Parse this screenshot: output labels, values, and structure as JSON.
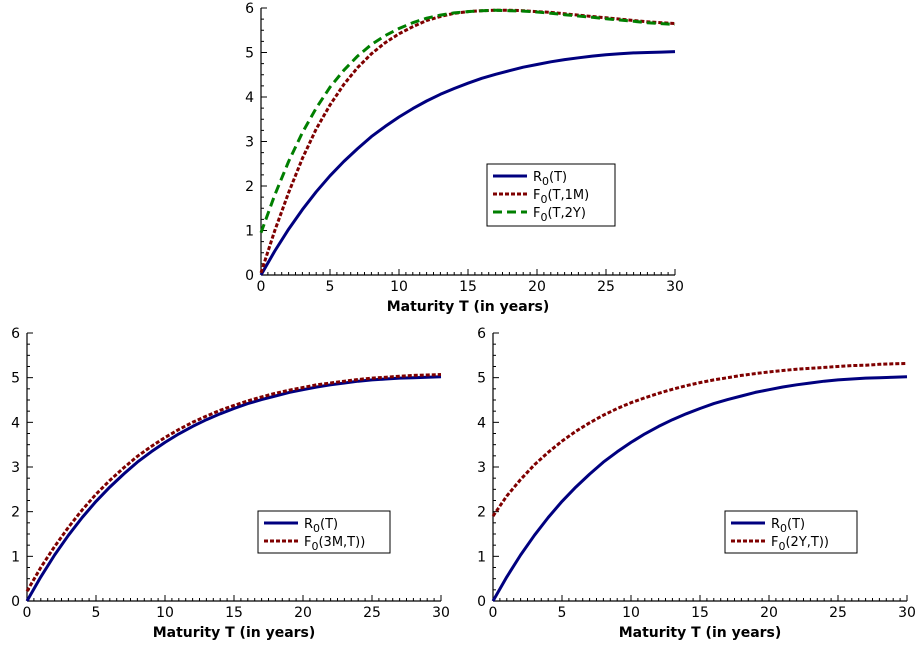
{
  "chart_data": [
    {
      "type": "line",
      "xlabel": "Maturity T (in years)",
      "ylabel": "",
      "xlim": [
        0,
        30
      ],
      "ylim": [
        0,
        6
      ],
      "xticks": [
        0,
        5,
        10,
        15,
        20,
        25,
        30
      ],
      "yticks": [
        0,
        1,
        2,
        3,
        4,
        5,
        6
      ],
      "grid": false,
      "legend_position": "center-right",
      "x": [
        0,
        1,
        2,
        3,
        4,
        5,
        6,
        7,
        8,
        9,
        10,
        11,
        12,
        13,
        14,
        15,
        16,
        17,
        18,
        19,
        20,
        21,
        22,
        23,
        24,
        25,
        26,
        27,
        28,
        29,
        30
      ],
      "series": [
        {
          "name": "R0(T)",
          "sub": "0",
          "prefix": "R",
          "suffix": "(T)",
          "color": "#00007f",
          "dash": "solid",
          "values": [
            0.0,
            0.54,
            1.03,
            1.47,
            1.87,
            2.23,
            2.55,
            2.84,
            3.11,
            3.34,
            3.55,
            3.74,
            3.91,
            4.06,
            4.19,
            4.31,
            4.42,
            4.51,
            4.59,
            4.67,
            4.73,
            4.79,
            4.84,
            4.88,
            4.92,
            4.95,
            4.97,
            4.99,
            5.0,
            5.01,
            5.02
          ]
        },
        {
          "name": "F0(T,1M)",
          "sub": "0",
          "prefix": "F",
          "suffix": "(T,1M)",
          "color": "#7f0000",
          "dash": "dotted",
          "values": [
            0.05,
            1.0,
            1.85,
            2.62,
            3.28,
            3.82,
            4.28,
            4.66,
            4.97,
            5.22,
            5.42,
            5.58,
            5.72,
            5.81,
            5.88,
            5.92,
            5.94,
            5.95,
            5.95,
            5.94,
            5.92,
            5.9,
            5.87,
            5.84,
            5.81,
            5.78,
            5.75,
            5.72,
            5.69,
            5.67,
            5.65
          ]
        },
        {
          "name": "F0(T,2Y)",
          "sub": "0",
          "prefix": "F",
          "suffix": "(T,2Y)",
          "color": "#007f00",
          "dash": "dashed",
          "values": [
            0.95,
            1.8,
            2.55,
            3.2,
            3.75,
            4.22,
            4.6,
            4.92,
            5.18,
            5.38,
            5.54,
            5.67,
            5.77,
            5.84,
            5.89,
            5.92,
            5.94,
            5.95,
            5.94,
            5.93,
            5.91,
            5.88,
            5.85,
            5.82,
            5.79,
            5.76,
            5.73,
            5.7,
            5.67,
            5.65,
            5.63
          ]
        }
      ]
    },
    {
      "type": "line",
      "xlabel": "Maturity T (in years)",
      "ylabel": "",
      "xlim": [
        0,
        30
      ],
      "ylim": [
        0,
        6
      ],
      "xticks": [
        0,
        5,
        10,
        15,
        20,
        25,
        30
      ],
      "yticks": [
        0,
        1,
        2,
        3,
        4,
        5,
        6
      ],
      "grid": false,
      "legend_position": "center-right",
      "x": [
        0,
        1,
        2,
        3,
        4,
        5,
        6,
        7,
        8,
        9,
        10,
        11,
        12,
        13,
        14,
        15,
        16,
        17,
        18,
        19,
        20,
        21,
        22,
        23,
        24,
        25,
        26,
        27,
        28,
        29,
        30
      ],
      "series": [
        {
          "name": "R0(T)",
          "sub": "0",
          "prefix": "R",
          "suffix": "(T)",
          "color": "#00007f",
          "dash": "solid",
          "values": [
            0.0,
            0.54,
            1.03,
            1.47,
            1.87,
            2.23,
            2.55,
            2.84,
            3.11,
            3.34,
            3.55,
            3.74,
            3.91,
            4.06,
            4.19,
            4.31,
            4.42,
            4.51,
            4.59,
            4.67,
            4.73,
            4.79,
            4.84,
            4.88,
            4.92,
            4.95,
            4.97,
            4.99,
            5.0,
            5.01,
            5.02
          ]
        },
        {
          "name": "F0(3M,T))",
          "sub": "0",
          "prefix": "F",
          "suffix": "(3M,T))",
          "color": "#7f0000",
          "dash": "dotted",
          "values": [
            0.22,
            0.75,
            1.22,
            1.65,
            2.04,
            2.39,
            2.7,
            2.98,
            3.24,
            3.46,
            3.66,
            3.84,
            4.0,
            4.14,
            4.27,
            4.38,
            4.48,
            4.57,
            4.65,
            4.72,
            4.78,
            4.84,
            4.88,
            4.92,
            4.96,
            4.99,
            5.01,
            5.03,
            5.05,
            5.06,
            5.07
          ]
        }
      ]
    },
    {
      "type": "line",
      "xlabel": "Maturity T (in years)",
      "ylabel": "",
      "xlim": [
        0,
        30
      ],
      "ylim": [
        0,
        6
      ],
      "xticks": [
        0,
        5,
        10,
        15,
        20,
        25,
        30
      ],
      "yticks": [
        0,
        1,
        2,
        3,
        4,
        5,
        6
      ],
      "grid": false,
      "legend_position": "center-right",
      "x": [
        0,
        1,
        2,
        3,
        4,
        5,
        6,
        7,
        8,
        9,
        10,
        11,
        12,
        13,
        14,
        15,
        16,
        17,
        18,
        19,
        20,
        21,
        22,
        23,
        24,
        25,
        26,
        27,
        28,
        29,
        30
      ],
      "series": [
        {
          "name": "R0(T)",
          "sub": "0",
          "prefix": "R",
          "suffix": "(T)",
          "color": "#00007f",
          "dash": "solid",
          "values": [
            0.0,
            0.54,
            1.03,
            1.47,
            1.87,
            2.23,
            2.55,
            2.84,
            3.11,
            3.34,
            3.55,
            3.74,
            3.91,
            4.06,
            4.19,
            4.31,
            4.42,
            4.51,
            4.59,
            4.67,
            4.73,
            4.79,
            4.84,
            4.88,
            4.92,
            4.95,
            4.97,
            4.99,
            5.0,
            5.01,
            5.02
          ]
        },
        {
          "name": "F0(2Y,T))",
          "sub": "0",
          "prefix": "F",
          "suffix": "(2Y,T))",
          "color": "#7f0000",
          "dash": "dotted",
          "values": [
            1.9,
            2.35,
            2.72,
            3.05,
            3.33,
            3.58,
            3.8,
            3.99,
            4.16,
            4.31,
            4.44,
            4.55,
            4.65,
            4.74,
            4.82,
            4.89,
            4.95,
            5.0,
            5.05,
            5.09,
            5.13,
            5.16,
            5.19,
            5.21,
            5.23,
            5.25,
            5.27,
            5.28,
            5.3,
            5.31,
            5.32
          ]
        }
      ]
    }
  ]
}
